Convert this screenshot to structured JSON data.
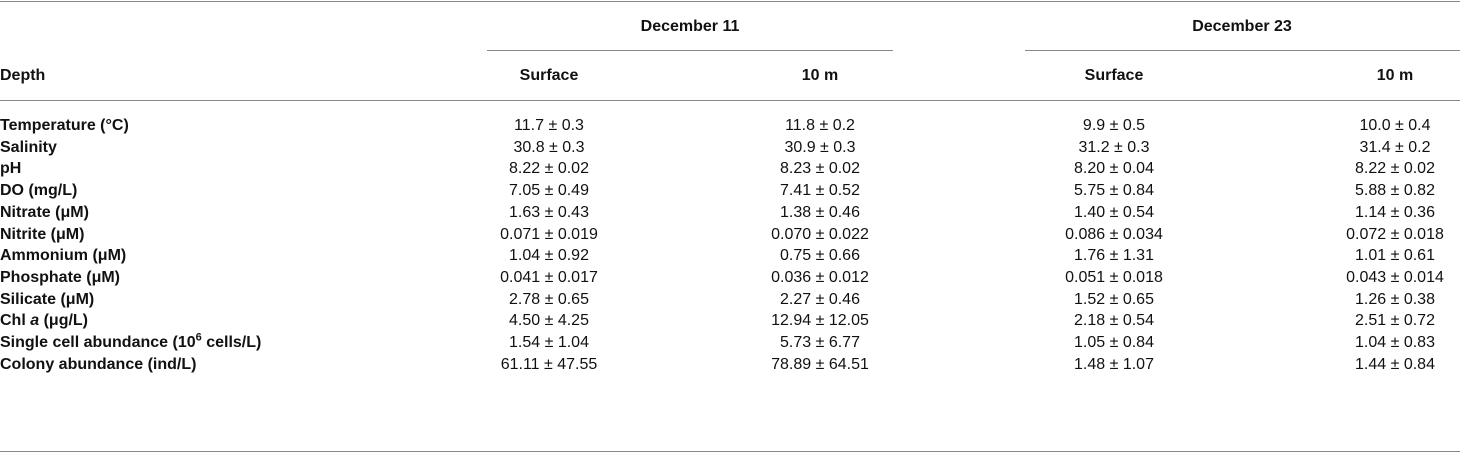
{
  "table": {
    "group_headers": [
      "December 11",
      "December 23"
    ],
    "row_header": "Depth",
    "columns": [
      "Surface",
      "10 m",
      "Surface",
      "10 m"
    ],
    "rows": [
      {
        "label": [
          "Temperature (°C)"
        ],
        "values": [
          "11.7 ± 0.3",
          "11.8 ± 0.2",
          "9.9 ± 0.5",
          "10.0 ± 0.4"
        ]
      },
      {
        "label": [
          "Salinity"
        ],
        "values": [
          "30.8 ± 0.3",
          "30.9 ± 0.3",
          "31.2 ± 0.3",
          "31.4 ± 0.2"
        ]
      },
      {
        "label": [
          "pH"
        ],
        "values": [
          "8.22 ± 0.02",
          "8.23 ± 0.02",
          "8.20 ± 0.04",
          "8.22 ± 0.02"
        ]
      },
      {
        "label": [
          "DO (mg/L)"
        ],
        "values": [
          "7.05 ± 0.49",
          "7.41 ± 0.52",
          "5.75 ± 0.84",
          "5.88 ± 0.82"
        ]
      },
      {
        "label": [
          "Nitrate (μM)"
        ],
        "values": [
          "1.63 ± 0.43",
          "1.38 ± 0.46",
          "1.40 ± 0.54",
          "1.14 ± 0.36"
        ]
      },
      {
        "label": [
          "Nitrite (μM)"
        ],
        "values": [
          "0.071 ± 0.019",
          "0.070 ± 0.022",
          "0.086 ± 0.034",
          "0.072 ± 0.018"
        ]
      },
      {
        "label": [
          "Ammonium (μM)"
        ],
        "values": [
          "1.04 ± 0.92",
          "0.75 ± 0.66",
          "1.76 ± 1.31",
          "1.01 ± 0.61"
        ]
      },
      {
        "label": [
          "Phosphate (μM)"
        ],
        "values": [
          "0.041 ± 0.017",
          "0.036 ± 0.012",
          "0.051 ± 0.018",
          "0.043 ± 0.014"
        ]
      },
      {
        "label": [
          "Silicate (μM)"
        ],
        "values": [
          "2.78 ± 0.65",
          "2.27 ± 0.46",
          "1.52 ± 0.65",
          "1.26 ± 0.38"
        ]
      },
      {
        "label": [
          "Chl ",
          {
            "text": "a",
            "style": "italic"
          },
          " (μg/L)"
        ],
        "values": [
          "4.50 ± 4.25",
          "12.94 ± 12.05",
          "2.18 ± 0.54",
          "2.51 ± 0.72"
        ]
      },
      {
        "label": [
          "Single cell abundance (10",
          {
            "text": "6",
            "style": "superscript"
          },
          " cells/L)"
        ],
        "values": [
          "1.54 ± 1.04",
          "5.73 ± 6.77",
          "1.05 ± 0.84",
          "1.04 ± 0.83"
        ]
      },
      {
        "label": [
          "Colony abundance (ind/L)"
        ],
        "values": [
          "61.11 ± 47.55",
          "78.89 ± 64.51",
          "1.48 ± 1.07",
          "1.44 ± 0.84"
        ]
      }
    ]
  }
}
